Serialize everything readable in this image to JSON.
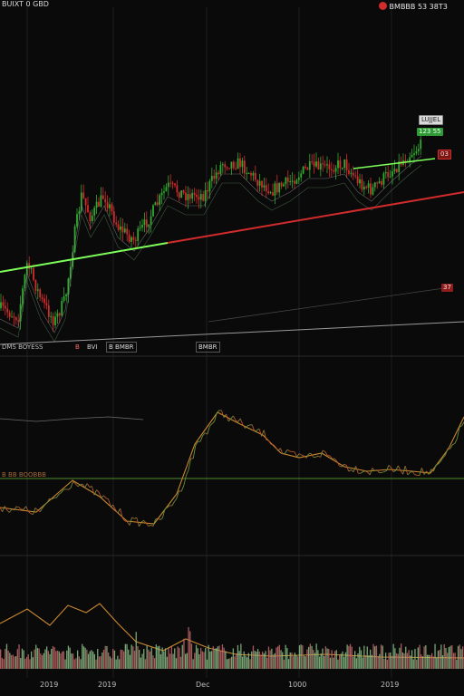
{
  "header": {
    "symbol_text": "BUIXT 0 GBD",
    "right_status": "BMBBB 53 38T3",
    "right_dot_color": "#d22b2b"
  },
  "price_tags": {
    "top_gray": "LUJJEL",
    "green": "123 55",
    "small_red": "03",
    "mid_red": "37"
  },
  "indicator_bar": {
    "left_text": "DMS BOYESS",
    "badge_a": "B",
    "badge_b": "BVI",
    "badge_c": "B BMBR",
    "badge_d": "BMBR"
  },
  "sub_panel": {
    "left_label": "B BB BOOBBB"
  },
  "time_axis": {
    "ticks": [
      "2019",
      "2019",
      "Dec",
      "1000",
      "2019"
    ]
  },
  "colors": {
    "background": "#0a0a0b",
    "grid": "#1f1f22",
    "up": "#2faa2f",
    "down": "#d22b2b",
    "bright_green": "#7dff5a",
    "orange_line": "#c9882e",
    "volume_green": "#8bbf86",
    "volume_red": "#c46a6a"
  }
}
